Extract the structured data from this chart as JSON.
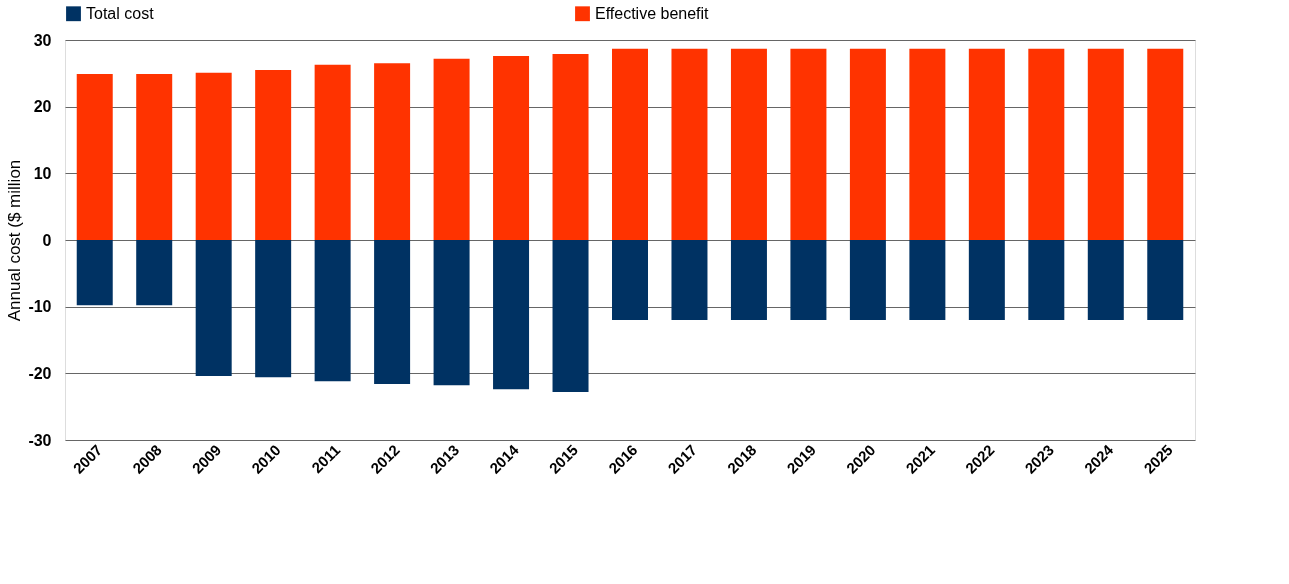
{
  "chart_data": {
    "type": "bar",
    "ylabel": "Annual cost ($ million",
    "categories": [
      "2007",
      "2008",
      "2009",
      "2010",
      "2011",
      "2012",
      "2013",
      "2014",
      "2015",
      "2016",
      "2017",
      "2018",
      "2019",
      "2020",
      "2021",
      "2022",
      "2023",
      "2024",
      "2025"
    ],
    "series": [
      {
        "name": "Total cost",
        "color": "#003263",
        "values": [
          -9.8,
          -9.8,
          -20.4,
          -20.6,
          -21.2,
          -21.6,
          -21.8,
          -22.4,
          -22.8,
          -12.0,
          -12.0,
          -12.0,
          -12.0,
          -12.0,
          -12.0,
          -12.0,
          -12.0,
          -12.0,
          -12.0
        ]
      },
      {
        "name": "Effective benefit",
        "color": "#ff3300",
        "values": [
          24.9,
          24.9,
          25.1,
          25.5,
          26.3,
          26.5,
          27.2,
          27.6,
          27.9,
          28.7,
          28.7,
          28.7,
          28.7,
          28.7,
          28.7,
          28.7,
          28.7,
          28.7,
          28.7
        ]
      }
    ],
    "stacked": true,
    "ylim": [
      -30,
      30
    ],
    "yticks": [
      -30,
      -20,
      -10,
      0,
      10,
      20,
      30
    ],
    "grid": "y",
    "legend": "top"
  }
}
